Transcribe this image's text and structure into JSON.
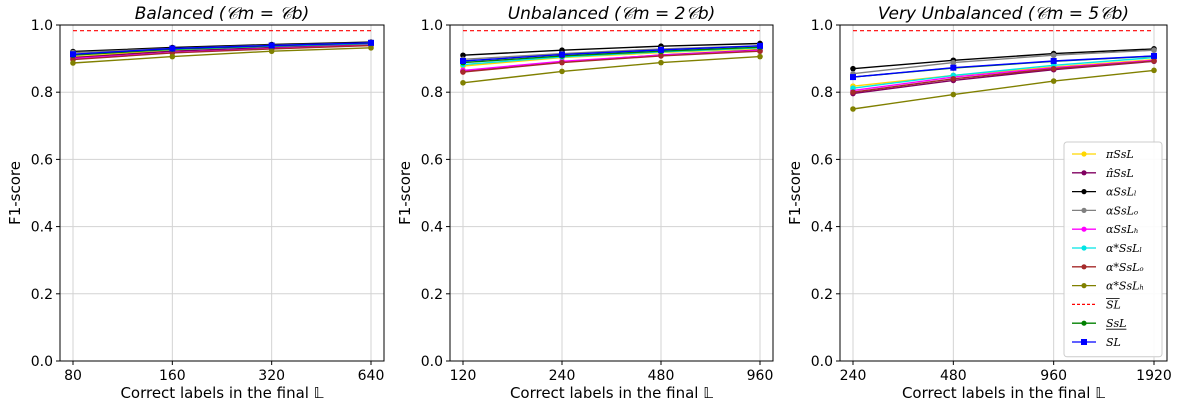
{
  "chart_data": [
    {
      "type": "line",
      "title": "Balanced  (𝒞m = 𝒞b)",
      "xlabel": "Correct labels in the final 𝕃",
      "ylabel": "F1-score",
      "categories": [
        "80",
        "160",
        "320",
        "640"
      ],
      "ylim": [
        0.0,
        1.0
      ],
      "yticks": [
        "0.0",
        "0.2",
        "0.4",
        "0.6",
        "0.8",
        "1.0"
      ],
      "grid": true,
      "series": [
        {
          "name": "πSsL",
          "color": "#ffd700",
          "marker": "circle",
          "values": [
            0.905,
            0.925,
            0.935,
            0.943
          ]
        },
        {
          "name": "π̂SsL",
          "color": "#800060",
          "marker": "circle",
          "values": [
            0.903,
            0.922,
            0.933,
            0.942
          ]
        },
        {
          "name": "αSsL_l",
          "color": "#000000",
          "marker": "circle",
          "values": [
            0.921,
            0.933,
            0.942,
            0.949
          ]
        },
        {
          "name": "αSsL_o",
          "color": "#808080",
          "marker": "circle",
          "values": [
            0.918,
            0.93,
            0.94,
            0.947
          ]
        },
        {
          "name": "αSsL_h",
          "color": "#ff00ff",
          "marker": "circle",
          "values": [
            0.9,
            0.918,
            0.93,
            0.94
          ]
        },
        {
          "name": "α*SsL_l",
          "color": "#00e5e5",
          "marker": "circle",
          "values": [
            0.912,
            0.927,
            0.937,
            0.945
          ]
        },
        {
          "name": "α*SsL_o",
          "color": "#a52a2a",
          "marker": "circle",
          "values": [
            0.897,
            0.917,
            0.929,
            0.939
          ]
        },
        {
          "name": "α*SsL_h",
          "color": "#808000",
          "marker": "circle",
          "values": [
            0.887,
            0.906,
            0.922,
            0.932
          ]
        },
        {
          "name": "SL (overline)",
          "color": "#ff0000",
          "marker": "none",
          "dashed": true,
          "values": [
            0.983,
            0.983,
            0.983,
            0.983
          ]
        },
        {
          "name": "SsL (underline)",
          "color": "#008000",
          "marker": "circle",
          "values": [
            0.91,
            0.928,
            0.938,
            0.946
          ]
        },
        {
          "name": "SL",
          "color": "#0000ff",
          "marker": "square",
          "values": [
            0.913,
            0.93,
            0.939,
            0.947
          ]
        }
      ]
    },
    {
      "type": "line",
      "title": "Unbalanced  (𝒞m = 2𝒞b)",
      "xlabel": "Correct labels in the final 𝕃",
      "ylabel": "F1-score",
      "categories": [
        "120",
        "240",
        "480",
        "960"
      ],
      "ylim": [
        0.0,
        1.0
      ],
      "yticks": [
        "0.0",
        "0.2",
        "0.4",
        "0.6",
        "0.8",
        "1.0"
      ],
      "grid": true,
      "series": [
        {
          "name": "πSsL",
          "color": "#ffd700",
          "marker": "circle",
          "values": [
            0.878,
            0.903,
            0.918,
            0.93
          ]
        },
        {
          "name": "π̂SsL",
          "color": "#800060",
          "marker": "circle",
          "values": [
            0.862,
            0.89,
            0.911,
            0.926
          ]
        },
        {
          "name": "αSsL_l",
          "color": "#000000",
          "marker": "circle",
          "values": [
            0.91,
            0.925,
            0.937,
            0.945
          ]
        },
        {
          "name": "αSsL_o",
          "color": "#808080",
          "marker": "circle",
          "values": [
            0.898,
            0.915,
            0.929,
            0.938
          ]
        },
        {
          "name": "αSsL_h",
          "color": "#ff00ff",
          "marker": "circle",
          "values": [
            0.865,
            0.892,
            0.91,
            0.924
          ]
        },
        {
          "name": "α*SsL_l",
          "color": "#00e5e5",
          "marker": "circle",
          "values": [
            0.882,
            0.905,
            0.92,
            0.932
          ]
        },
        {
          "name": "α*SsL_o",
          "color": "#a52a2a",
          "marker": "circle",
          "values": [
            0.86,
            0.888,
            0.908,
            0.922
          ]
        },
        {
          "name": "α*SsL_h",
          "color": "#808000",
          "marker": "circle",
          "values": [
            0.828,
            0.862,
            0.888,
            0.906
          ]
        },
        {
          "name": "SL (overline)",
          "color": "#ff0000",
          "marker": "none",
          "dashed": true,
          "values": [
            0.983,
            0.983,
            0.983,
            0.983
          ]
        },
        {
          "name": "SsL (underline)",
          "color": "#008000",
          "marker": "circle",
          "values": [
            0.888,
            0.908,
            0.922,
            0.934
          ]
        },
        {
          "name": "SL",
          "color": "#0000ff",
          "marker": "square",
          "values": [
            0.893,
            0.912,
            0.926,
            0.938
          ]
        }
      ]
    },
    {
      "type": "line",
      "title": "Very  Unbalanced  (𝒞m = 5𝒞b)",
      "xlabel": "Correct labels in the final 𝕃",
      "ylabel": "F1-score",
      "categories": [
        "240",
        "480",
        "960",
        "1920"
      ],
      "ylim": [
        0.0,
        1.0
      ],
      "yticks": [
        "0.0",
        "0.2",
        "0.4",
        "0.6",
        "0.8",
        "1.0"
      ],
      "grid": true,
      "series": [
        {
          "name": "πSsL",
          "color": "#ffd700",
          "marker": "circle",
          "values": [
            0.818,
            0.85,
            0.875,
            0.897
          ]
        },
        {
          "name": "π̂SsL",
          "color": "#800060",
          "marker": "circle",
          "values": [
            0.796,
            0.835,
            0.867,
            0.892
          ]
        },
        {
          "name": "αSsL_l",
          "color": "#000000",
          "marker": "circle",
          "values": [
            0.87,
            0.895,
            0.915,
            0.929
          ]
        },
        {
          "name": "αSsL_o",
          "color": "#808080",
          "marker": "circle",
          "values": [
            0.855,
            0.888,
            0.91,
            0.925
          ]
        },
        {
          "name": "αSsL_h",
          "color": "#ff00ff",
          "marker": "circle",
          "values": [
            0.805,
            0.845,
            0.873,
            0.895
          ]
        },
        {
          "name": "α*SsL_l",
          "color": "#00e5e5",
          "marker": "circle",
          "values": [
            0.812,
            0.85,
            0.88,
            0.903
          ]
        },
        {
          "name": "α*SsL_o",
          "color": "#a52a2a",
          "marker": "circle",
          "values": [
            0.8,
            0.84,
            0.87,
            0.893
          ]
        },
        {
          "name": "α*SsL_h",
          "color": "#808000",
          "marker": "circle",
          "values": [
            0.75,
            0.793,
            0.833,
            0.865
          ]
        },
        {
          "name": "SL (overline)",
          "color": "#ff0000",
          "marker": "none",
          "dashed": true,
          "values": [
            0.983,
            0.983,
            0.983,
            0.983
          ]
        },
        {
          "name": "SsL (underline)",
          "color": "#008000",
          "marker": "circle",
          "values": [
            0.845,
            0.872,
            0.892,
            0.907
          ]
        },
        {
          "name": "SL",
          "color": "#0000ff",
          "marker": "square",
          "values": [
            0.845,
            0.873,
            0.893,
            0.908
          ]
        }
      ]
    }
  ],
  "legend": {
    "placement": "lower-right of third panel",
    "entries": [
      {
        "label": "πSsL",
        "color": "#ffd700",
        "marker": "circle",
        "dashed": false
      },
      {
        "label": "π̂SsL",
        "color": "#800060",
        "marker": "circle",
        "dashed": false
      },
      {
        "label": "αSsLₗ",
        "color": "#000000",
        "marker": "circle",
        "dashed": false
      },
      {
        "label": "αSsLₒ",
        "color": "#808080",
        "marker": "circle",
        "dashed": false
      },
      {
        "label": "αSsLₕ",
        "color": "#ff00ff",
        "marker": "circle",
        "dashed": false
      },
      {
        "label": "α*SsLₗ",
        "color": "#00e5e5",
        "marker": "circle",
        "dashed": false
      },
      {
        "label": "α*SsLₒ",
        "color": "#a52a2a",
        "marker": "circle",
        "dashed": false
      },
      {
        "label": "α*SsLₕ",
        "color": "#808000",
        "marker": "circle",
        "dashed": false
      },
      {
        "label": "SL",
        "color": "#ff0000",
        "marker": "none",
        "dashed": true,
        "decoration": "overline"
      },
      {
        "label": "SsL",
        "color": "#008000",
        "marker": "circle",
        "dashed": false,
        "decoration": "underline"
      },
      {
        "label": "SL",
        "color": "#0000ff",
        "marker": "square",
        "dashed": false,
        "decoration": "none"
      }
    ]
  }
}
